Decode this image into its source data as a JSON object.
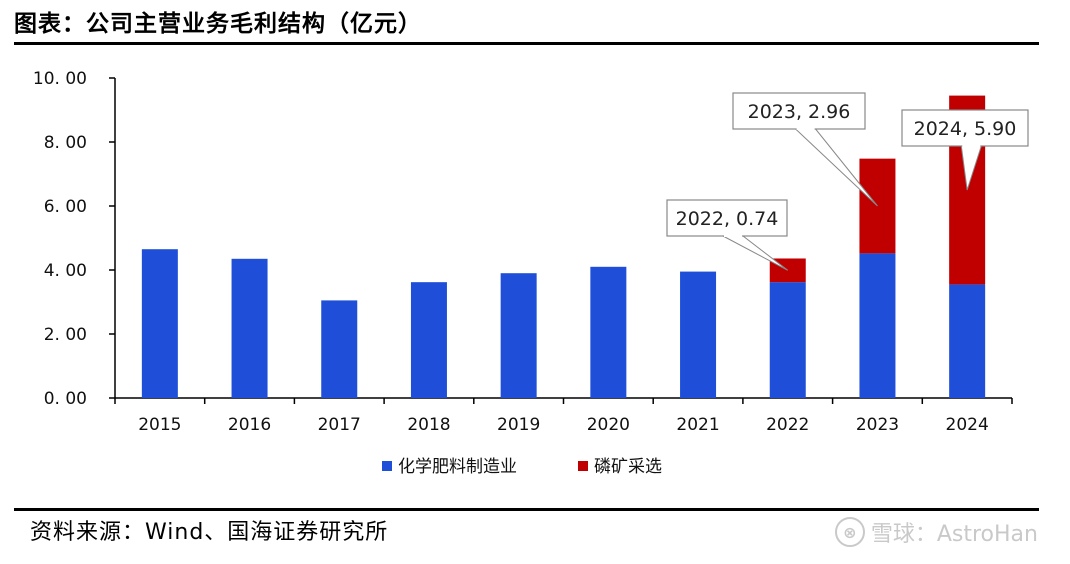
{
  "header": {
    "title": "图表：公司主营业务毛利结构（亿元）"
  },
  "footer": {
    "source": "资料来源：Wind、国海证券研究所",
    "watermark": "雪球：AstroHan"
  },
  "chart_data": {
    "type": "bar",
    "stacked": true,
    "categories": [
      "2015",
      "2016",
      "2017",
      "2018",
      "2019",
      "2020",
      "2021",
      "2022",
      "2023",
      "2024"
    ],
    "series": [
      {
        "name": "化学肥料制造业",
        "color": "#1f4fd8",
        "values": [
          4.65,
          4.35,
          3.05,
          3.62,
          3.9,
          4.1,
          3.95,
          3.62,
          4.52,
          3.55
        ]
      },
      {
        "name": "磷矿采选",
        "color": "#c00000",
        "values": [
          0,
          0,
          0,
          0,
          0,
          0,
          0,
          0.74,
          2.96,
          5.9
        ]
      }
    ],
    "ylim": [
      0,
      10
    ],
    "yticks": [
      "0. 00",
      "2. 00",
      "4. 00",
      "6. 00",
      "8. 00",
      "10. 00"
    ],
    "legend_position": "bottom",
    "annotations": [
      {
        "category": "2022",
        "text": "2022, 0.74"
      },
      {
        "category": "2023",
        "text": "2023, 2.96"
      },
      {
        "category": "2024",
        "text": "2024, 5.90"
      }
    ]
  }
}
